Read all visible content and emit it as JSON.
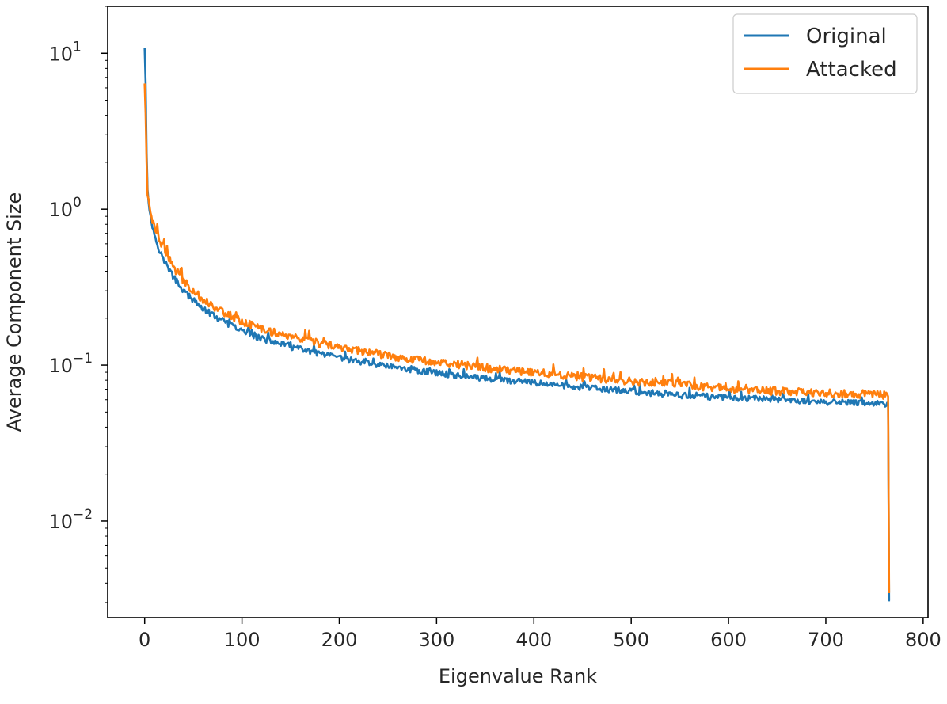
{
  "chart_data": {
    "type": "line",
    "title": "",
    "xlabel": "Eigenvalue Rank",
    "ylabel": "Average Component Size",
    "xlim": [
      -38,
      805
    ],
    "ylim": [
      0.0024,
      20
    ],
    "yscale": "log",
    "x_ticks": [
      0,
      100,
      200,
      300,
      400,
      500,
      600,
      700,
      800
    ],
    "x_tick_labels": [
      "0",
      "100",
      "200",
      "300",
      "400",
      "500",
      "600",
      "700",
      "800"
    ],
    "y_ticks": [
      10,
      1,
      0.1,
      0.01
    ],
    "y_tick_labels": [
      {
        "base": "10",
        "exp": "1"
      },
      {
        "base": "10",
        "exp": "0"
      },
      {
        "base": "10",
        "exp": "−1"
      },
      {
        "base": "10",
        "exp": "−2"
      }
    ],
    "grid": false,
    "legend_position": "top-right",
    "series": [
      {
        "name": "Original",
        "color": "#1f77b4",
        "x": [
          0,
          1,
          2,
          3,
          5,
          8,
          12,
          16,
          20,
          25,
          30,
          40,
          50,
          60,
          75,
          100,
          125,
          150,
          175,
          200,
          250,
          300,
          350,
          400,
          450,
          500,
          550,
          600,
          650,
          700,
          750,
          763,
          764,
          765,
          766
        ],
        "y": [
          10.8,
          6.6,
          2.4,
          1.4,
          0.95,
          0.78,
          0.62,
          0.53,
          0.47,
          0.41,
          0.365,
          0.3,
          0.26,
          0.23,
          0.2,
          0.165,
          0.145,
          0.131,
          0.12,
          0.111,
          0.098,
          0.089,
          0.082,
          0.077,
          0.072,
          0.068,
          0.064,
          0.062,
          0.06,
          0.058,
          0.057,
          0.056,
          0.055,
          0.0031,
          0.0031
        ],
        "noise": 0.045
      },
      {
        "name": "Attacked",
        "color": "#ff7f0e",
        "x": [
          0,
          1,
          2,
          3,
          5,
          8,
          12,
          16,
          20,
          25,
          30,
          40,
          50,
          60,
          75,
          100,
          125,
          150,
          175,
          200,
          250,
          300,
          350,
          400,
          450,
          500,
          550,
          600,
          650,
          700,
          750,
          763,
          764,
          765,
          766
        ],
        "y": [
          6.4,
          4.2,
          1.9,
          1.25,
          1.05,
          0.86,
          0.73,
          0.63,
          0.56,
          0.48,
          0.42,
          0.35,
          0.3,
          0.265,
          0.23,
          0.19,
          0.168,
          0.152,
          0.14,
          0.13,
          0.115,
          0.105,
          0.096,
          0.09,
          0.084,
          0.079,
          0.075,
          0.071,
          0.068,
          0.066,
          0.065,
          0.064,
          0.063,
          0.0035,
          0.0035
        ],
        "noise": 0.06
      }
    ]
  }
}
